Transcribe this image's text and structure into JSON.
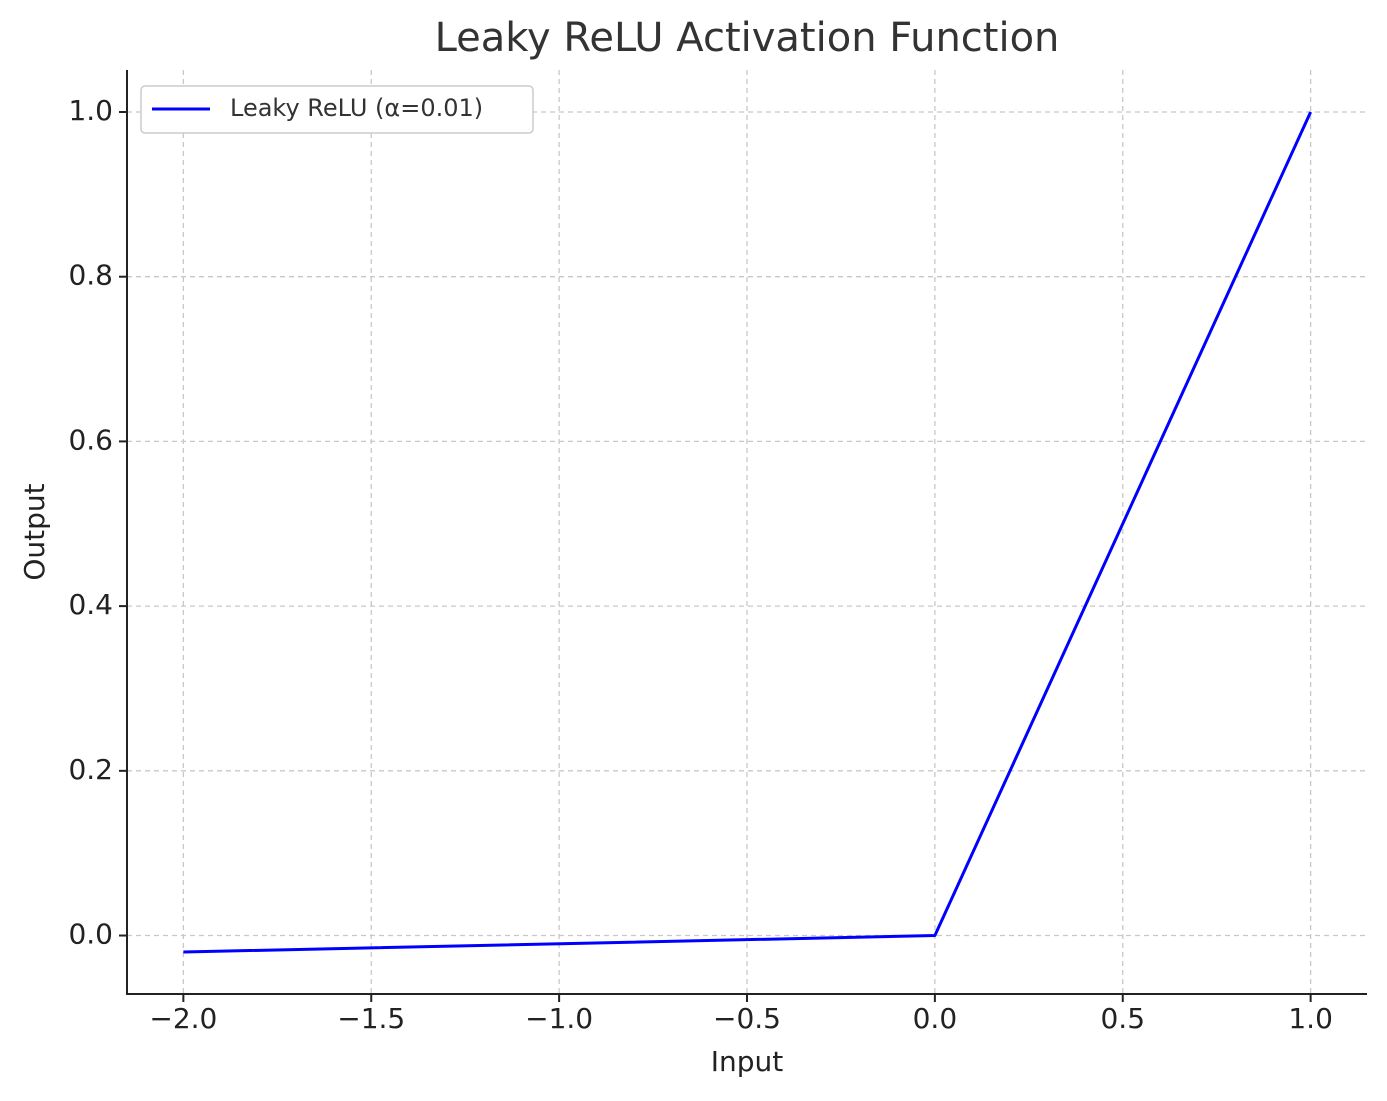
{
  "chart_data": {
    "type": "line",
    "title": "Leaky ReLU Activation Function",
    "x_label": "Input",
    "y_label": "Output",
    "x": [
      -2,
      0,
      1
    ],
    "series": [
      {
        "name": "Leaky ReLU (α=0.01)",
        "color": "#0000ff",
        "values": [
          -0.02,
          0,
          1
        ]
      }
    ],
    "xlim": [
      -2.15,
      1.15
    ],
    "ylim": [
      -0.071,
      1.051
    ],
    "xticks": [
      {
        "value": -2,
        "label": "−2.0"
      },
      {
        "value": -1.5,
        "label": "−1.5"
      },
      {
        "value": -1,
        "label": "−1.0"
      },
      {
        "value": -0.5,
        "label": "−0.5"
      },
      {
        "value": 0,
        "label": "0.0"
      },
      0.5,
      {
        "value": 1,
        "label": "1.0"
      }
    ],
    "yticks": [
      {
        "value": 0,
        "label": "0.0"
      },
      0.2,
      0.4,
      0.6,
      0.8,
      {
        "value": 1,
        "label": "1.0"
      }
    ],
    "grid": true,
    "legend": "upper left"
  }
}
